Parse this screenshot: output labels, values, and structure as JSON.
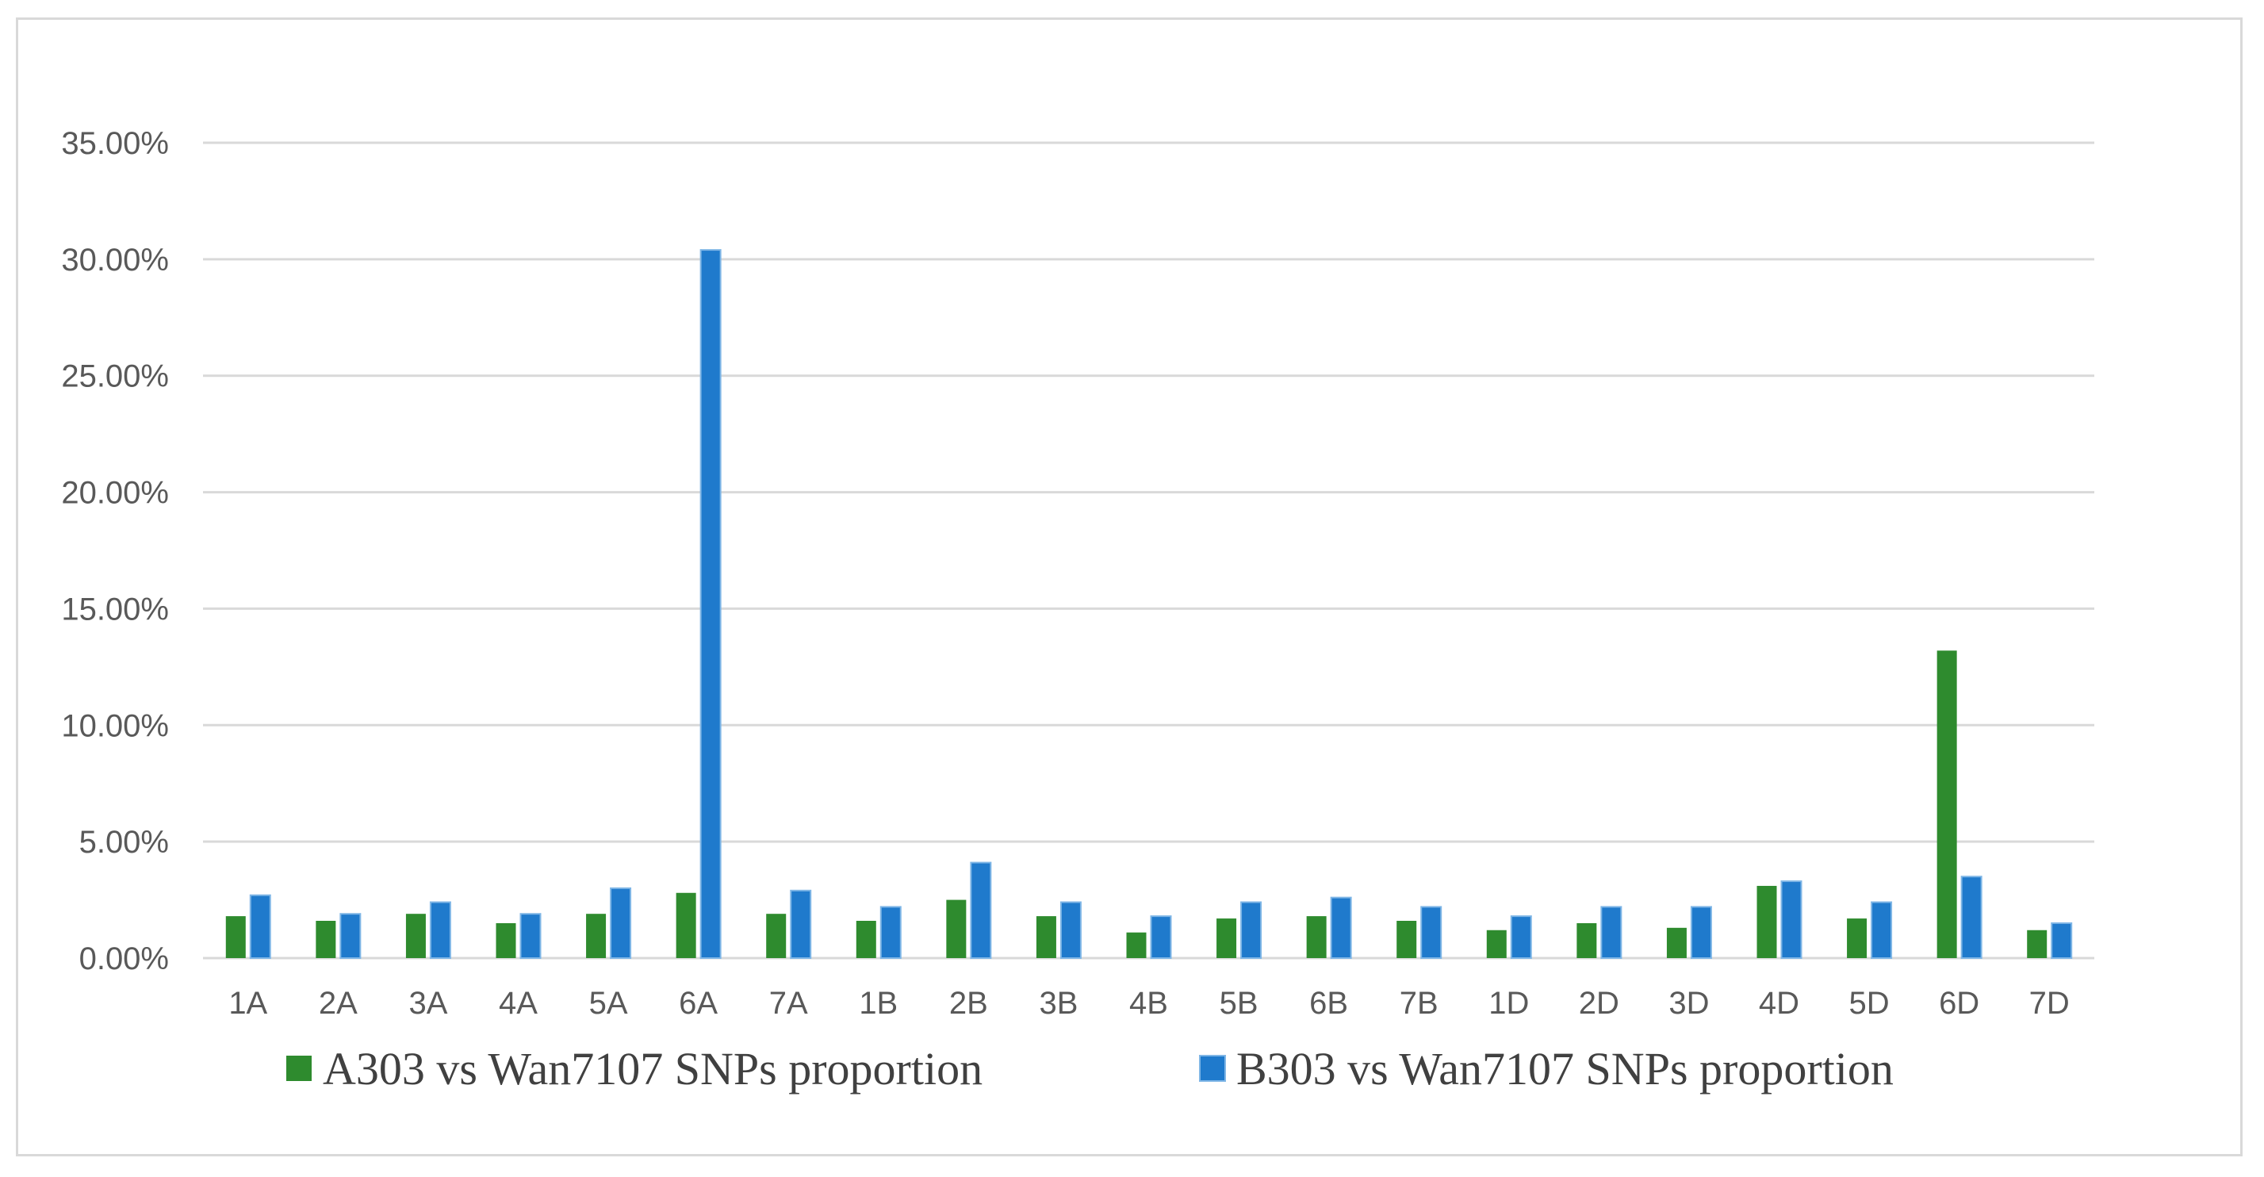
{
  "chart_data": {
    "type": "bar",
    "title": "",
    "xlabel": "",
    "ylabel": "",
    "ylim": [
      0,
      0.35
    ],
    "y_ticks": [
      {
        "value": 0.35,
        "label": "35.00%"
      },
      {
        "value": 0.3,
        "label": "30.00%"
      },
      {
        "value": 0.25,
        "label": "25.00%"
      },
      {
        "value": 0.2,
        "label": "20.00%"
      },
      {
        "value": 0.15,
        "label": "15.00%"
      },
      {
        "value": 0.1,
        "label": "10.00%"
      },
      {
        "value": 0.05,
        "label": "5.00%"
      },
      {
        "value": 0.0,
        "label": "0.00%"
      }
    ],
    "grid": true,
    "legend_position": "bottom",
    "categories": [
      "1A",
      "2A",
      "3A",
      "4A",
      "5A",
      "6A",
      "7A",
      "1B",
      "2B",
      "3B",
      "4B",
      "5B",
      "6B",
      "7B",
      "1D",
      "2D",
      "3D",
      "4D",
      "5D",
      "6D",
      "7D"
    ],
    "series": [
      {
        "name": "A303 vs Wan7107 SNPs proportion",
        "color": "#2e8b2e",
        "values": [
          0.018,
          0.016,
          0.019,
          0.015,
          0.019,
          0.028,
          0.019,
          0.016,
          0.025,
          0.018,
          0.011,
          0.017,
          0.018,
          0.016,
          0.012,
          0.015,
          0.013,
          0.031,
          0.017,
          0.132,
          0.012
        ]
      },
      {
        "name": "B303 vs Wan7107 SNPs proportion",
        "color": "#1f7acc",
        "values": [
          0.027,
          0.019,
          0.024,
          0.019,
          0.03,
          0.304,
          0.029,
          0.022,
          0.041,
          0.024,
          0.018,
          0.024,
          0.026,
          0.022,
          0.018,
          0.022,
          0.022,
          0.033,
          0.024,
          0.035,
          0.015
        ]
      }
    ]
  }
}
